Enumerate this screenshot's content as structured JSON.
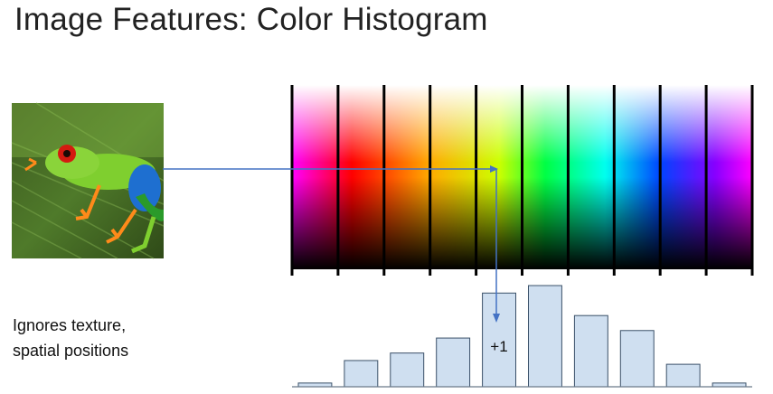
{
  "slide": {
    "title": "Image Features: Color Histogram",
    "caption_lines": [
      "Ignores texture,",
      "spatial positions"
    ],
    "increment_label": "+1"
  },
  "chart_data": {
    "type": "bar",
    "bins": 10,
    "values": [
      1,
      7,
      9,
      13,
      25,
      27,
      19,
      15,
      6,
      1
    ],
    "highlight_bin": 4,
    "bar_color": "#cfdff0",
    "bar_stroke": "#3a5068",
    "arrow_color": "#4472c4"
  },
  "images": {
    "example_image": "tree-frog-photo"
  }
}
